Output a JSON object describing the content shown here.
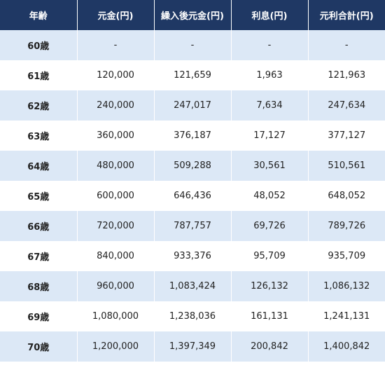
{
  "table": {
    "headers": [
      "年齢",
      "元金(円)",
      "繰入後元金(円)",
      "利息(円)",
      "元利合計(円)"
    ],
    "rows": [
      [
        "60歳",
        "-",
        "-",
        "-",
        "-"
      ],
      [
        "61歳",
        "120,000",
        "121,659",
        "1,963",
        "121,963"
      ],
      [
        "62歳",
        "240,000",
        "247,017",
        "7,634",
        "247,634"
      ],
      [
        "63歳",
        "360,000",
        "376,187",
        "17,127",
        "377,127"
      ],
      [
        "64歳",
        "480,000",
        "509,288",
        "30,561",
        "510,561"
      ],
      [
        "65歳",
        "600,000",
        "646,436",
        "48,052",
        "648,052"
      ],
      [
        "66歳",
        "720,000",
        "787,757",
        "69,726",
        "789,726"
      ],
      [
        "67歳",
        "840,000",
        "933,376",
        "95,709",
        "935,709"
      ],
      [
        "68歳",
        "960,000",
        "1,083,424",
        "126,132",
        "1,086,132"
      ],
      [
        "69歳",
        "1,080,000",
        "1,238,036",
        "161,131",
        "1,241,131"
      ],
      [
        "70歳",
        "1,200,000",
        "1,397,349",
        "200,842",
        "1,400,842"
      ]
    ]
  },
  "colors": {
    "header_bg": "#1f3864",
    "header_text": "#ffffff",
    "stripe_bg": "#dce8f6",
    "row_bg": "#ffffff"
  }
}
